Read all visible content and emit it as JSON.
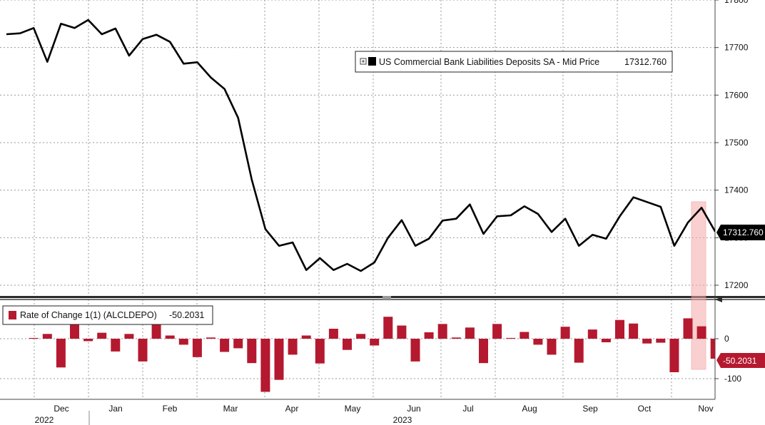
{
  "chart_data": [
    {
      "type": "line",
      "legend": "US Commercial Bank Liabilities Deposits SA - Mid Price",
      "legend_value": "17312.760",
      "last_label": "17312.760",
      "color": "#000000",
      "ylim": [
        17160,
        17800
      ],
      "yticks": [
        "17800",
        "17700",
        "17600",
        "17500",
        "17400",
        "17300",
        "17200"
      ],
      "grid": true,
      "legend_position": "top-right",
      "values": [
        17728,
        17730,
        17741,
        17670,
        17750,
        17741,
        17758,
        17728,
        17740,
        17683,
        17718,
        17727,
        17712,
        17666,
        17669,
        17637,
        17613,
        17552,
        17422,
        17318,
        17283,
        17290,
        17232,
        17257,
        17232,
        17245,
        17230,
        17248,
        17300,
        17337,
        17283,
        17298,
        17336,
        17340,
        17370,
        17308,
        17345,
        17347,
        17366,
        17350,
        17312,
        17340,
        17283,
        17306,
        17298,
        17345,
        17385,
        17375,
        17365,
        17283,
        17332,
        17363,
        17313
      ]
    },
    {
      "type": "bar",
      "legend": "Rate of Change 1(1) (ALCLDEPO)",
      "legend_value": "-50.2031",
      "last_label": "-50.2031",
      "color": "#b5192f",
      "ylim": [
        -130,
        60
      ],
      "yticks": [
        "0",
        "-100"
      ],
      "grid": true,
      "legend_position": "top-left",
      "values": [
        2,
        12,
        -72,
        36,
        -6,
        15,
        -32,
        12,
        -57,
        35,
        8,
        -15,
        -46,
        3,
        -33,
        -24,
        -61,
        -133,
        -103,
        -40,
        8,
        -62,
        25,
        -28,
        12,
        -17,
        55,
        33,
        -57,
        16,
        37,
        3,
        28,
        -61,
        37,
        2,
        17,
        -15,
        -40,
        30,
        -60,
        23,
        -9,
        47,
        38,
        -12,
        -10,
        -84,
        51,
        31,
        -50
      ]
    }
  ],
  "x_axis": {
    "months": [
      "Dec",
      "Jan",
      "Feb",
      "Mar",
      "Apr",
      "May",
      "Jun",
      "Jul",
      "Aug",
      "Sep",
      "Oct",
      "Nov"
    ],
    "years": [
      "2022",
      "2023"
    ]
  }
}
